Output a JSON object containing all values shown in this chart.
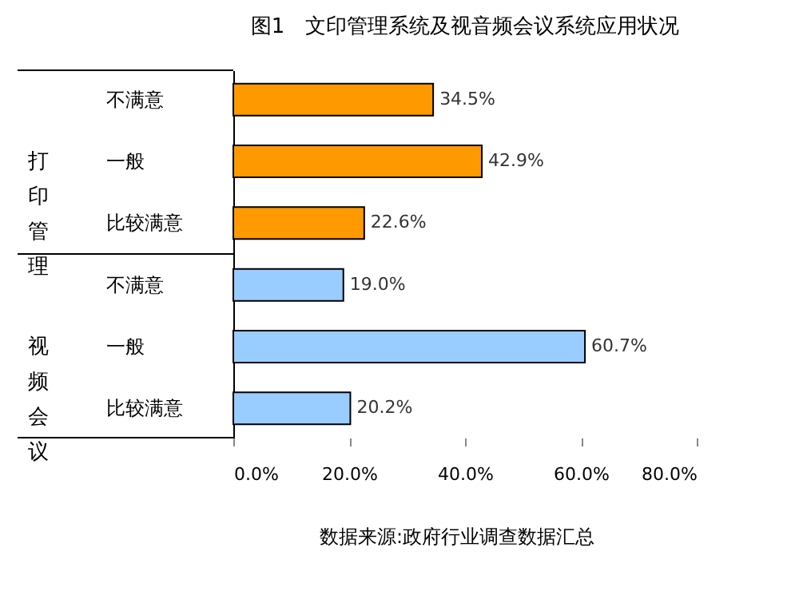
{
  "chart_data": {
    "type": "bar",
    "orientation": "horizontal",
    "title": "图1　文印管理系统及视音频会议系统应用状况",
    "categories": [
      "不满意",
      "一般",
      "比较满意",
      "不满意",
      "一般",
      "比较满意"
    ],
    "values": [
      34.5,
      42.9,
      22.6,
      19.0,
      60.7,
      20.2
    ],
    "colors": [
      "#ff9900",
      "#ff9900",
      "#ff9900",
      "#99ccff",
      "#99ccff",
      "#99ccff"
    ],
    "value_labels": [
      "34.5%",
      "42.9%",
      "22.6%",
      "19.0%",
      "60.7%",
      "20.2%"
    ],
    "xlim": [
      0,
      80
    ],
    "xticks": [
      {
        "value": 0,
        "label": "0.0%"
      },
      {
        "value": 20,
        "label": "20.0%"
      },
      {
        "value": 40,
        "label": "40.0%"
      },
      {
        "value": 60,
        "label": "60.0%"
      },
      {
        "value": 80,
        "label": "80.0%"
      }
    ],
    "grid": false,
    "annotations": [
      "打印管理",
      "视频会议",
      "数据来源:政府行业调查数据汇总"
    ]
  }
}
